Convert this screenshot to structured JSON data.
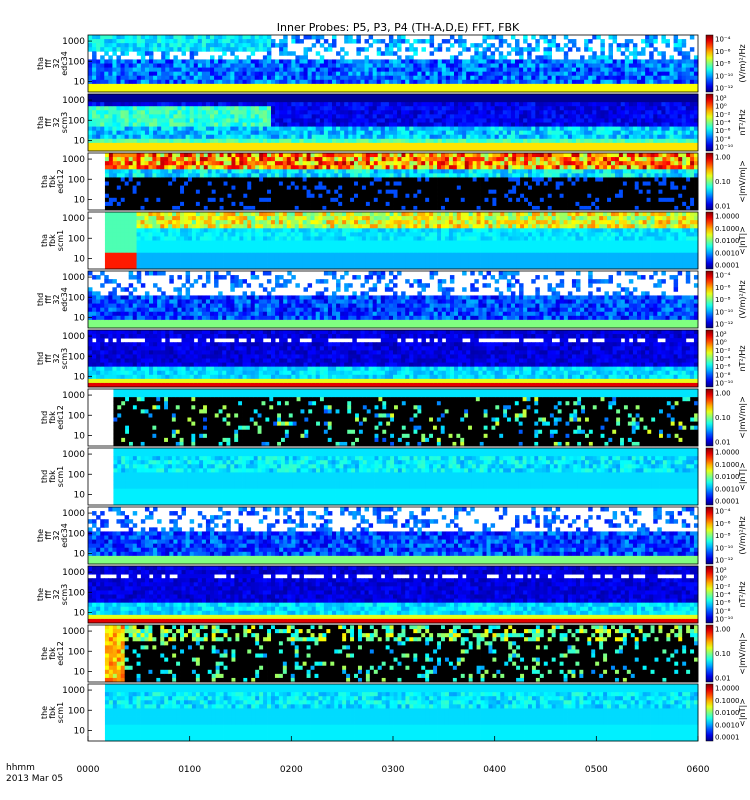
{
  "chart_data": {
    "type": "heatmap",
    "title": "Inner Probes: P5, P3, P4 (TH-A,D,E) FFT, FBK",
    "x_ticks": [
      "0000",
      "0100",
      "0200",
      "0300",
      "0400",
      "0500",
      "0600"
    ],
    "x_range": [
      "0000",
      "0600"
    ],
    "time_label": "hhmm",
    "date_label": "2013 Mar 05",
    "y_scale": "log",
    "y_ticks": [
      "10",
      "100",
      "1000"
    ],
    "panels": [
      {
        "probe": "tha",
        "label": [
          "tha",
          "fff",
          "32",
          "edc34"
        ],
        "cbar_unit": "(V/m)²/Hz",
        "cbar_type": "fft_e",
        "cbar_ticks": [
          "10⁻⁴",
          "10⁻⁶",
          "10⁻⁸",
          "10⁻¹⁰",
          "10⁻¹²"
        ],
        "start_hhmm": "0000",
        "style": "fft_e_day"
      },
      {
        "probe": "tha",
        "label": [
          "tha",
          "fff",
          "32",
          "scm3"
        ],
        "cbar_unit": "nT²/Hz",
        "cbar_type": "fft_b",
        "cbar_ticks": [
          "10²",
          "10⁰",
          "10⁻²",
          "10⁻⁴",
          "10⁻⁶",
          "10⁻⁸",
          "10⁻¹⁰"
        ],
        "start_hhmm": "0000",
        "style": "fft_b_day"
      },
      {
        "probe": "tha",
        "label": [
          "tha",
          "fbk",
          "edc12"
        ],
        "cbar_unit": "<|mV/m|>",
        "cbar_type": "fbk_e",
        "cbar_ticks": [
          "1.00",
          "0.10",
          "0.01"
        ],
        "start_hhmm": "0010",
        "style": "fbk_e_hot"
      },
      {
        "probe": "tha",
        "label": [
          "tha",
          "fbk",
          "scm1"
        ],
        "cbar_unit": "<|nT|>",
        "cbar_type": "fbk_b",
        "cbar_ticks": [
          "1.0000",
          "0.1000",
          "0.0100",
          "0.0010",
          "0.0001"
        ],
        "start_hhmm": "0010",
        "style": "fbk_b_hot"
      },
      {
        "probe": "thd",
        "label": [
          "thd",
          "fff",
          "32",
          "edc34"
        ],
        "cbar_unit": "(V/m)²/Hz",
        "cbar_type": "fft_e",
        "cbar_ticks": [
          "10⁻⁴",
          "10⁻⁶",
          "10⁻⁸",
          "10⁻¹⁰",
          "10⁻¹²"
        ],
        "start_hhmm": "0000",
        "style": "fft_e_night"
      },
      {
        "probe": "thd",
        "label": [
          "thd",
          "fff",
          "32",
          "scm3"
        ],
        "cbar_unit": "nT²/Hz",
        "cbar_type": "fft_b",
        "cbar_ticks": [
          "10²",
          "10⁰",
          "10⁻²",
          "10⁻⁴",
          "10⁻⁶",
          "10⁻⁸",
          "10⁻¹⁰"
        ],
        "start_hhmm": "0000",
        "style": "fft_b_night"
      },
      {
        "probe": "thd",
        "label": [
          "thd",
          "fbk",
          "edc12"
        ],
        "cbar_unit": "<|mV/m|>",
        "cbar_type": "fbk_e",
        "cbar_ticks": [
          "1.00",
          "0.10",
          "0.01"
        ],
        "start_hhmm": "0015",
        "style": "fbk_e_dark"
      },
      {
        "probe": "thd",
        "label": [
          "thd",
          "fbk",
          "scm1"
        ],
        "cbar_unit": "<|nT|>",
        "cbar_type": "fbk_b",
        "cbar_ticks": [
          "1.0000",
          "0.1000",
          "0.0100",
          "0.0010",
          "0.0001"
        ],
        "start_hhmm": "0015",
        "style": "fbk_b_cool"
      },
      {
        "probe": "the",
        "label": [
          "the",
          "fff",
          "32",
          "edc34"
        ],
        "cbar_unit": "(V/m)²/Hz",
        "cbar_type": "fft_e",
        "cbar_ticks": [
          "10⁻⁴",
          "10⁻⁶",
          "10⁻⁸",
          "10⁻¹⁰",
          "10⁻¹²"
        ],
        "start_hhmm": "0000",
        "style": "fft_e_night"
      },
      {
        "probe": "the",
        "label": [
          "the",
          "fff",
          "32",
          "scm3"
        ],
        "cbar_unit": "nT²/Hz",
        "cbar_type": "fft_b",
        "cbar_ticks": [
          "10²",
          "10⁰",
          "10⁻²",
          "10⁻⁴",
          "10⁻⁶",
          "10⁻⁸",
          "10⁻¹⁰"
        ],
        "start_hhmm": "0000",
        "style": "fft_b_night"
      },
      {
        "probe": "the",
        "label": [
          "the",
          "fbk",
          "edc12"
        ],
        "cbar_unit": "<|mV/m|>",
        "cbar_type": "fbk_e",
        "cbar_ticks": [
          "1.00",
          "0.10",
          "0.01"
        ],
        "start_hhmm": "0010",
        "style": "fbk_e_mixed"
      },
      {
        "probe": "the",
        "label": [
          "the",
          "fbk",
          "scm1"
        ],
        "cbar_unit": "<|nT|>",
        "cbar_type": "fbk_b",
        "cbar_ticks": [
          "1.0000",
          "0.1000",
          "0.0100",
          "0.0010",
          "0.0001"
        ],
        "start_hhmm": "0010",
        "style": "fbk_b_cool"
      }
    ]
  }
}
